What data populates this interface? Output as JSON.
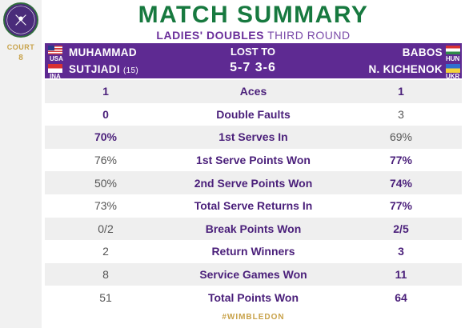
{
  "header": {
    "title": "MATCH SUMMARY",
    "subtitle_bold": "LADIES' DOUBLES",
    "subtitle_light": "THIRD ROUND",
    "court_label": "COURT",
    "court_number": "8",
    "logo_text_top": "THE CHAMPIONSHIPS",
    "logo_text_bottom": "WIMBLEDON"
  },
  "banner": {
    "team1": [
      {
        "name": "MUHAMMAD",
        "country": "USA"
      },
      {
        "name": "SUTJIADI",
        "seed": "(15)",
        "country": "INA"
      }
    ],
    "team2": [
      {
        "name": "BABOS",
        "country": "HUN"
      },
      {
        "name": "N. KICHENOK",
        "country": "UKR"
      }
    ],
    "result_label": "LOST TO",
    "score": "5-7 3-6"
  },
  "stats": [
    {
      "label": "Aces",
      "left": "1",
      "right": "1",
      "left_win": true,
      "right_win": true
    },
    {
      "label": "Double Faults",
      "left": "0",
      "right": "3",
      "left_win": true,
      "right_win": false
    },
    {
      "label": "1st Serves In",
      "left": "70%",
      "right": "69%",
      "left_win": true,
      "right_win": false
    },
    {
      "label": "1st Serve Points Won",
      "left": "76%",
      "right": "77%",
      "left_win": false,
      "right_win": true
    },
    {
      "label": "2nd Serve Points Won",
      "left": "50%",
      "right": "74%",
      "left_win": false,
      "right_win": true
    },
    {
      "label": "Total Serve Returns In",
      "left": "73%",
      "right": "77%",
      "left_win": false,
      "right_win": true
    },
    {
      "label": "Break Points Won",
      "left": "0/2",
      "right": "2/5",
      "left_win": false,
      "right_win": true
    },
    {
      "label": "Return Winners",
      "left": "2",
      "right": "3",
      "left_win": false,
      "right_win": true
    },
    {
      "label": "Service Games Won",
      "left": "8",
      "right": "11",
      "left_win": false,
      "right_win": true
    },
    {
      "label": "Total Points Won",
      "left": "51",
      "right": "64",
      "left_win": false,
      "right_win": true
    }
  ],
  "footer": {
    "hashtag": "#WIMBLEDON"
  },
  "colors": {
    "purple": "#5e2a92",
    "green": "#17793f",
    "gold": "#c8a24a"
  }
}
